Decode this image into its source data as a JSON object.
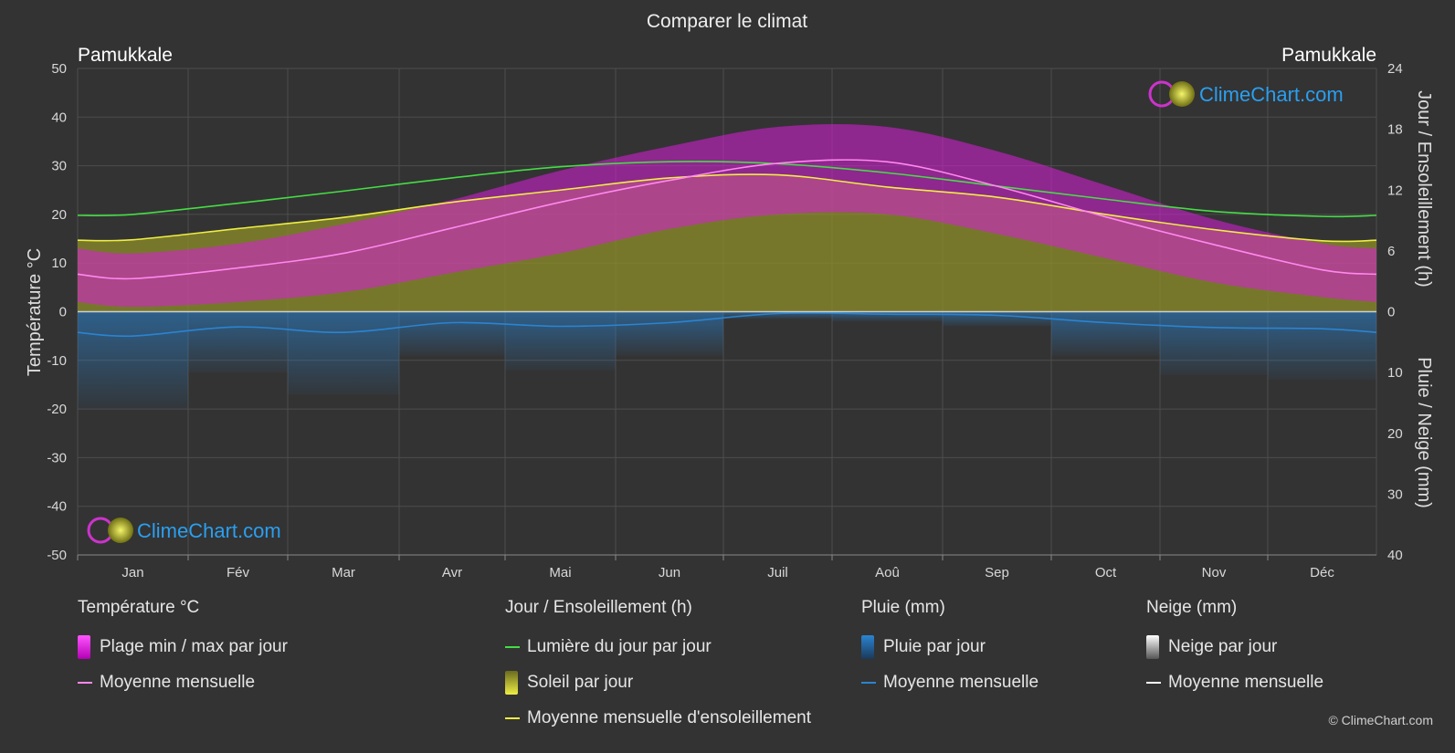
{
  "title": "Comparer le climat",
  "location_left": "Pamukkale",
  "location_right": "Pamukkale",
  "copyright": "© ClimeChart.com",
  "brand": "ClimeChart.com",
  "colors": {
    "background": "#333333",
    "daylight": "#44dd44",
    "sunshine_band": "#8f8f2a",
    "sunshine_line": "#eeee44",
    "temp_band": "#d81ed8",
    "temp_line": "#ff88ee",
    "rain": "#2a84d2",
    "snow": "#ffffff"
  },
  "chart_data": {
    "type": "area",
    "categories": [
      "Jan",
      "Fév",
      "Mar",
      "Avr",
      "Mai",
      "Jun",
      "Juil",
      "Aoû",
      "Sep",
      "Oct",
      "Nov",
      "Déc"
    ],
    "y_left": {
      "label": "Température °C",
      "ylim": [
        -50,
        50
      ],
      "ticks": [
        50,
        40,
        30,
        20,
        10,
        0,
        -10,
        -20,
        -30,
        -40,
        -50
      ]
    },
    "y_right_top": {
      "label": "Jour / Ensoleillement (h)",
      "ylim": [
        0,
        24
      ],
      "ticks": [
        24,
        18,
        12,
        6,
        0
      ]
    },
    "y_right_bottom": {
      "label": "Pluie / Neige (mm)",
      "ylim": [
        0,
        40
      ],
      "ticks": [
        0,
        10,
        20,
        30,
        40
      ]
    },
    "grid": true,
    "series": [
      {
        "name": "Lumière du jour par jour",
        "axis": "hours",
        "values": [
          9.6,
          10.7,
          11.9,
          13.2,
          14.3,
          14.8,
          14.6,
          13.7,
          12.4,
          11.1,
          9.9,
          9.4
        ]
      },
      {
        "name": "Moyenne mensuelle d'ensoleillement",
        "axis": "hours",
        "values": [
          7.1,
          8.2,
          9.3,
          10.8,
          12.0,
          13.2,
          13.5,
          12.3,
          11.3,
          9.6,
          8.1,
          7.0
        ]
      },
      {
        "name": "Moyenne mensuelle",
        "kind": "temperature",
        "axis": "celsius",
        "values": [
          6.8,
          9.0,
          12.0,
          17.2,
          22.5,
          27.0,
          30.5,
          30.8,
          25.8,
          19.5,
          13.8,
          8.6
        ]
      },
      {
        "name": "Plage min / max par jour",
        "kind": "temperature_range",
        "axis": "celsius",
        "min": [
          1,
          2,
          4,
          8,
          12,
          17,
          20,
          20,
          16,
          11,
          6,
          3
        ],
        "max": [
          12,
          14,
          18,
          23,
          29,
          34,
          38,
          38,
          33,
          26,
          19,
          14
        ]
      },
      {
        "name": "Moyenne mensuelle",
        "kind": "rain",
        "axis": "mm",
        "values": [
          4.0,
          2.5,
          3.4,
          1.8,
          2.4,
          1.8,
          0.3,
          0.4,
          0.6,
          1.8,
          2.6,
          2.8
        ]
      }
    ]
  },
  "legend": {
    "temperature": {
      "title": "Température °C",
      "items": [
        "Plage min / max par jour",
        "Moyenne mensuelle"
      ]
    },
    "sun": {
      "title": "Jour / Ensoleillement (h)",
      "items": [
        "Lumière du jour par jour",
        "Soleil par jour",
        "Moyenne mensuelle d'ensoleillement"
      ]
    },
    "rain": {
      "title": "Pluie (mm)",
      "items": [
        "Pluie par jour",
        "Moyenne mensuelle"
      ]
    },
    "snow": {
      "title": "Neige (mm)",
      "items": [
        "Neige par jour",
        "Moyenne mensuelle"
      ]
    }
  }
}
